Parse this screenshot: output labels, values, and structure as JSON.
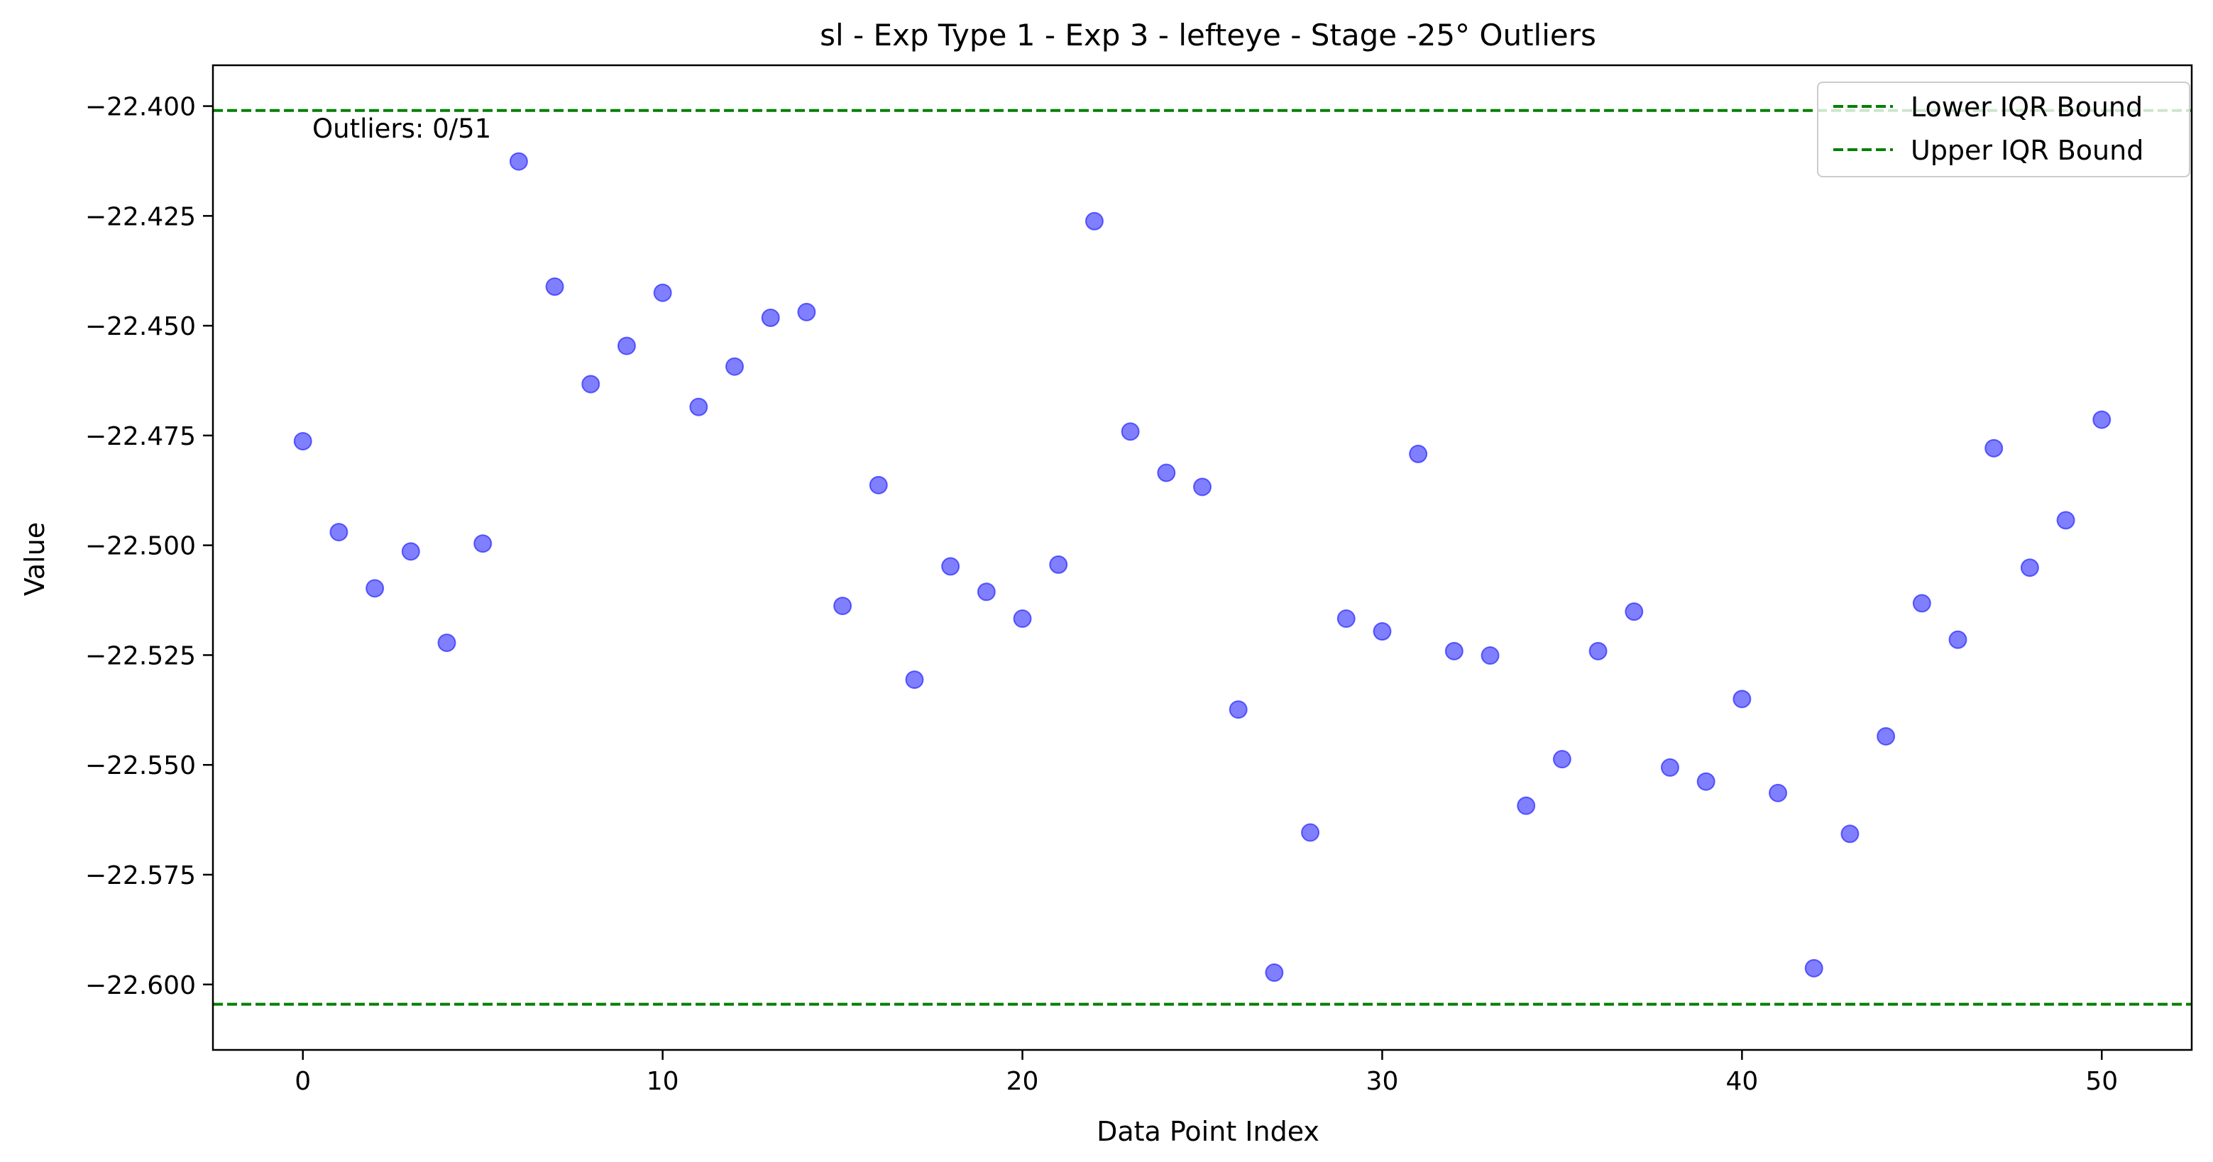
{
  "chart_data": {
    "type": "scatter",
    "title": "sl - Exp Type 1 - Exp 3 - lefteye - Stage -25° Outliers",
    "xlabel": "Data Point Index",
    "ylabel": "Value",
    "xlim": [
      -2.5,
      52.5
    ],
    "ylim": [
      -22.6149,
      -22.3907
    ],
    "xticks": [
      0,
      10,
      20,
      30,
      40,
      50
    ],
    "yticks": [
      -22.4,
      -22.425,
      -22.45,
      -22.475,
      -22.5,
      -22.525,
      -22.55,
      -22.575,
      -22.6
    ],
    "ytick_labels": [
      "−22.400",
      "−22.425",
      "−22.450",
      "−22.475",
      "−22.500",
      "−22.525",
      "−22.550",
      "−22.575",
      "−22.600"
    ],
    "grid": false,
    "legend_position": "upper-right",
    "point_color": "#0000ff",
    "point_opacity": 0.5,
    "x": [
      0,
      1,
      2,
      3,
      4,
      5,
      6,
      7,
      8,
      9,
      10,
      11,
      12,
      13,
      14,
      15,
      16,
      17,
      18,
      19,
      20,
      21,
      22,
      23,
      24,
      25,
      26,
      27,
      28,
      29,
      30,
      31,
      32,
      33,
      34,
      35,
      36,
      37,
      38,
      39,
      40,
      41,
      42,
      43,
      44,
      45,
      46,
      47,
      48,
      49,
      50
    ],
    "y": [
      -22.4763,
      -22.497,
      -22.5098,
      -22.5014,
      -22.5222,
      -22.4996,
      -22.4126,
      -22.4411,
      -22.4633,
      -22.4546,
      -22.4425,
      -22.4685,
      -22.4593,
      -22.4482,
      -22.4469,
      -22.5138,
      -22.4863,
      -22.5306,
      -22.5048,
      -22.5106,
      -22.5167,
      -22.5044,
      -22.4262,
      -22.4741,
      -22.4835,
      -22.4867,
      -22.5374,
      -22.5973,
      -22.5654,
      -22.5167,
      -22.5196,
      -22.4792,
      -22.5241,
      -22.5251,
      -22.5593,
      -22.5487,
      -22.5241,
      -22.5151,
      -22.5506,
      -22.5538,
      -22.535,
      -22.5564,
      -22.5963,
      -22.5657,
      -22.5435,
      -22.5132,
      -22.5215,
      -22.4779,
      -22.5051,
      -22.4943,
      -22.4714
    ],
    "reference_lines": [
      {
        "name": "Lower IQR Bound",
        "y": -22.401,
        "color": "#008000",
        "style": "dashed"
      },
      {
        "name": "Upper IQR Bound",
        "y": -22.6045,
        "color": "#008000",
        "style": "dashed"
      }
    ],
    "annotation": "Outliers: 0/51"
  }
}
